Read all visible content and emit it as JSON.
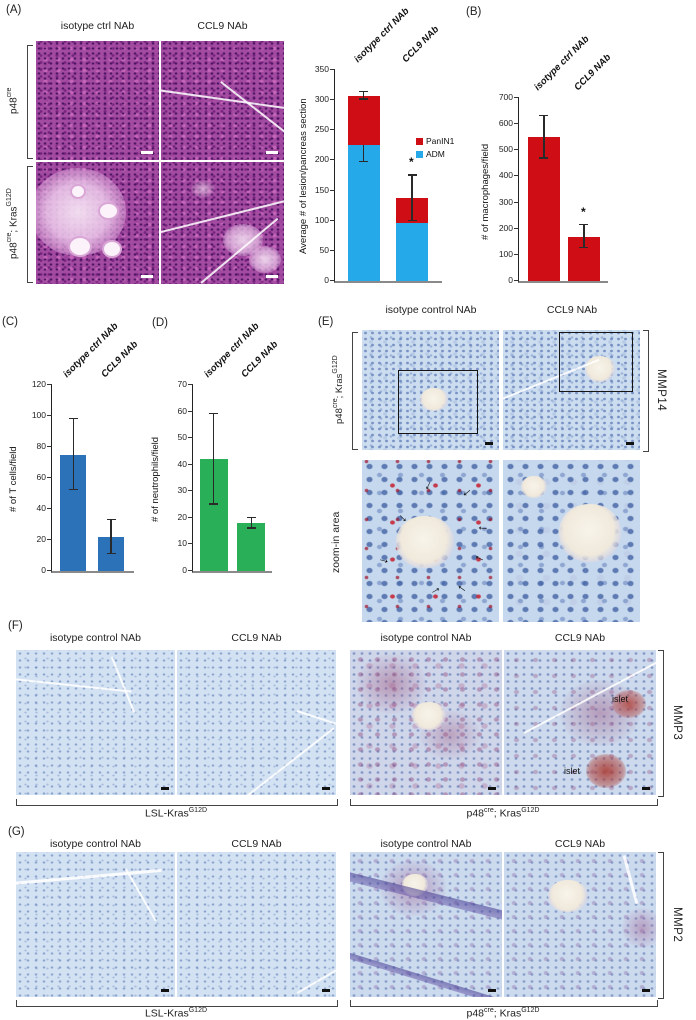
{
  "icons": {
    "arrow": "→"
  },
  "panel_a": {
    "label": "(A)",
    "col1": "isotype ctrl NAb",
    "col2": "CCL9 NAb",
    "row1": {
      "base": "p48",
      "sup": "cre"
    },
    "row2": {
      "base": "p48",
      "sup": "cre",
      "mid": "; Kras",
      "sup2": "G12D"
    }
  },
  "panel_b": {
    "label": "(B)"
  },
  "panel_c": {
    "label": "(C)"
  },
  "panel_d": {
    "label": "(D)"
  },
  "panel_e": {
    "label": "(E)",
    "col1": "isotype control NAb",
    "col2": "CCL9 NAb",
    "row1": {
      "base": "p48",
      "sup": "cre",
      "mid": "; Kras",
      "sup2": "G12D"
    },
    "row2": "zoom-in area",
    "side": "MMP14"
  },
  "panel_f": {
    "label": "(F)",
    "headers": [
      "isotype control NAb",
      "CCL9 NAb",
      "isotype control NAb",
      "CCL9 NAb"
    ],
    "group1": {
      "base": "LSL-Kras",
      "sup": "G12D"
    },
    "group2": {
      "base": "p48",
      "sup": "cre",
      "mid": "; Kras",
      "sup2": "G12D"
    },
    "side": "MMP3",
    "annotations": [
      "islet",
      "islet"
    ]
  },
  "panel_g": {
    "label": "(G)",
    "headers": [
      "isotype control NAb",
      "CCL9 NAb",
      "isotype control NAb",
      "CCL9 NAb"
    ],
    "group1": {
      "base": "LSL-Kras",
      "sup": "G12D"
    },
    "group2": {
      "base": "p48",
      "sup": "cre",
      "mid": "; Kras",
      "sup2": "G12D"
    },
    "side": "MMP2"
  },
  "chart_data": [
    {
      "id": "lesion-count",
      "type": "bar",
      "stacked": true,
      "ylabel": "Average # of lesion/pancreas section",
      "categories": [
        "isotype ctrl NAb",
        "CCL9 NAb"
      ],
      "series": [
        {
          "name": "ADM",
          "color": "#26A9E8",
          "values": [
            225,
            97
          ],
          "err": [
            28,
            null
          ]
        },
        {
          "name": "PanIN1",
          "color": "#CE0E14",
          "values": [
            82,
            40
          ],
          "err": [
            6,
            38
          ]
        }
      ],
      "sig": [
        "",
        "*"
      ],
      "ylim": [
        0,
        350
      ],
      "yticks": [
        0,
        50,
        100,
        150,
        200,
        250,
        300,
        350
      ],
      "legend": true,
      "legend_position": "right-middle",
      "grid": false
    },
    {
      "id": "macrophage-count",
      "type": "bar",
      "stacked": false,
      "ylabel": "# of macrophages/field",
      "categories": [
        "isotype ctrl NAb",
        "CCL9 NAb"
      ],
      "series": [
        {
          "name": "macrophages",
          "color": "#CE0E14",
          "values": [
            550,
            170
          ],
          "err": [
            82,
            45
          ]
        }
      ],
      "sig": [
        "",
        "*"
      ],
      "ylim": [
        0,
        700
      ],
      "yticks": [
        0,
        100,
        200,
        300,
        400,
        500,
        600,
        700
      ],
      "legend": false,
      "grid": false
    },
    {
      "id": "tcell-count",
      "type": "bar",
      "stacked": false,
      "ylabel": "# of T cells/field",
      "categories": [
        "isotype ctrl NAb",
        "CCL9 NAb"
      ],
      "series": [
        {
          "name": "T cells",
          "color": "#2C72B8",
          "values": [
            75,
            22
          ],
          "err": [
            23,
            11
          ]
        }
      ],
      "sig": [
        "",
        ""
      ],
      "ylim": [
        0,
        120
      ],
      "yticks": [
        0,
        20,
        40,
        60,
        80,
        100,
        120
      ],
      "legend": false,
      "grid": false
    },
    {
      "id": "neutrophil-count",
      "type": "bar",
      "stacked": false,
      "ylabel": "# of neutrophils/field",
      "categories": [
        "isotype ctrl NAb",
        "CCL9 NAb"
      ],
      "series": [
        {
          "name": "neutrophils",
          "color": "#28AF58",
          "values": [
            42,
            18
          ],
          "err": [
            17,
            2
          ]
        }
      ],
      "sig": [
        "",
        ""
      ],
      "ylim": [
        0,
        70
      ],
      "yticks": [
        0,
        10,
        20,
        30,
        40,
        50,
        60,
        70
      ],
      "legend": false,
      "grid": false
    }
  ]
}
